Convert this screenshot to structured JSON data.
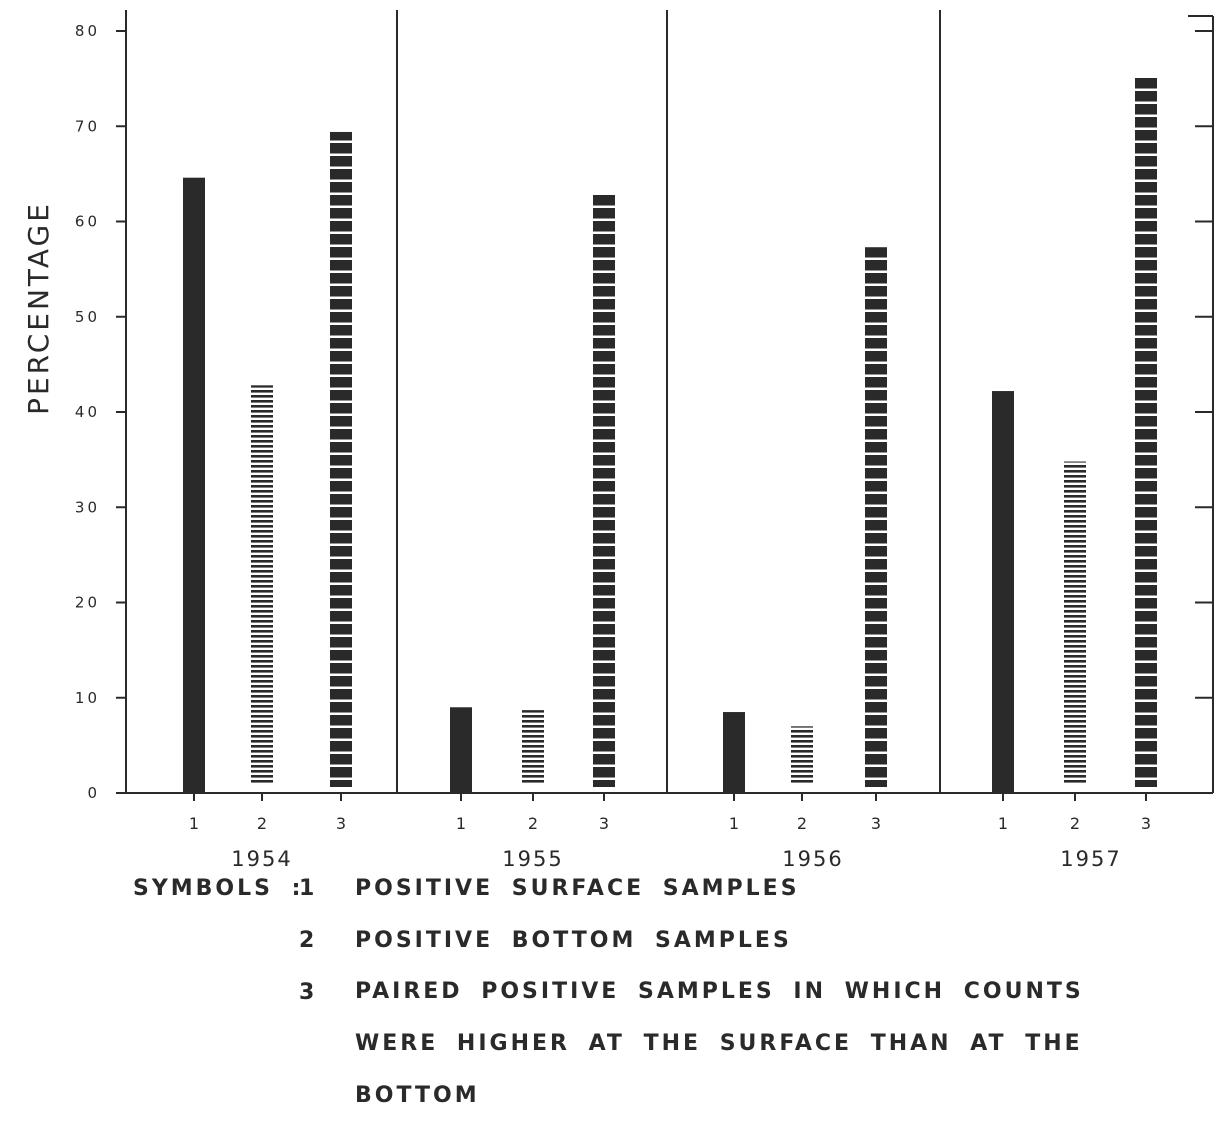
{
  "chart_data": {
    "type": "bar",
    "ylabel": "PERCENTAGE",
    "xlabel": "",
    "ylim": [
      0,
      80
    ],
    "yticks": [
      0,
      10,
      20,
      30,
      40,
      50,
      60,
      70,
      80
    ],
    "ytick_labels": [
      "0",
      "10",
      "20",
      "30",
      "40",
      "50",
      "60",
      "70",
      "80"
    ],
    "symbols": [
      "1",
      "2",
      "3"
    ],
    "groups": [
      {
        "year": "1954",
        "values": [
          64.6,
          42.8,
          69.4
        ]
      },
      {
        "year": "1955",
        "values": [
          9.0,
          8.7,
          63.0
        ]
      },
      {
        "year": "1956",
        "values": [
          8.5,
          7.0,
          57.3
        ]
      },
      {
        "year": "1957",
        "values": [
          42.2,
          34.8,
          75.3
        ]
      }
    ],
    "series": [
      {
        "symbol": "1",
        "pattern": "solid",
        "values": [
          64.6,
          9.0,
          8.5,
          42.2
        ]
      },
      {
        "symbol": "2",
        "pattern": "fine-horizontal-hatch",
        "values": [
          42.8,
          8.7,
          7.0,
          34.8
        ]
      },
      {
        "symbol": "3",
        "pattern": "blocks",
        "values": [
          69.4,
          63.0,
          57.3,
          75.3
        ]
      }
    ],
    "grid": false,
    "legend": {
      "title": "SYMBOLS :",
      "items": [
        {
          "key": "1",
          "label": "POSITIVE SURFACE SAMPLES"
        },
        {
          "key": "2",
          "label": "POSITIVE BOTTOM SAMPLES"
        },
        {
          "key": "3",
          "label": "PAIRED POSITIVE SAMPLES IN WHICH COUNTS WERE HIGHER AT THE SURFACE THAN AT THE BOTTOM"
        }
      ],
      "placement": "bottom"
    },
    "colors": {
      "ink": "#2a2a2a",
      "background": "#ffffff"
    }
  }
}
